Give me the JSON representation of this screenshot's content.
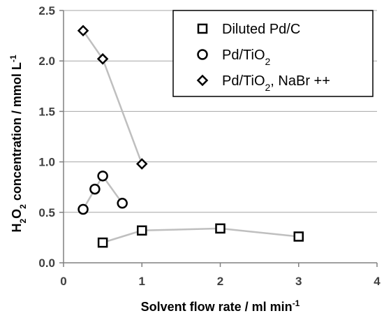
{
  "chart_data": {
    "type": "scatter",
    "title": "",
    "xlabel": {
      "main": "Solvent flow rate / ml min",
      "sup": "-1"
    },
    "ylabel": {
      "parts": [
        {
          "t": "H",
          "s": "normal"
        },
        {
          "t": "2",
          "s": "sub"
        },
        {
          "t": "O",
          "s": "normal"
        },
        {
          "t": "2",
          "s": "sub"
        },
        {
          "t": " concentration / mmol L",
          "s": "normal"
        },
        {
          "t": "-1",
          "s": "sup"
        }
      ]
    },
    "xlim": [
      0,
      4
    ],
    "ylim": [
      0,
      2.5
    ],
    "xticks": [
      "0",
      "1",
      "2",
      "3",
      "4"
    ],
    "yticks": [
      "0.0",
      "0.5",
      "1.0",
      "1.5",
      "2.0",
      "2.5"
    ],
    "grid": "horizontal",
    "legend_position": "top-right",
    "series": [
      {
        "name": "Diluted Pd/C",
        "name_parts": [
          {
            "t": "Diluted Pd/C",
            "s": "normal"
          }
        ],
        "marker": "square",
        "line_color": "#bfbfbf",
        "points": [
          [
            0.5,
            0.2
          ],
          [
            1.0,
            0.32
          ],
          [
            2.0,
            0.34
          ],
          [
            3.0,
            0.26
          ]
        ]
      },
      {
        "name": "Pd/TiO2",
        "name_parts": [
          {
            "t": "Pd/TiO",
            "s": "normal"
          },
          {
            "t": "2",
            "s": "sub"
          }
        ],
        "marker": "circle",
        "line_color": "#bfbfbf",
        "points": [
          [
            0.25,
            0.53
          ],
          [
            0.4,
            0.73
          ],
          [
            0.5,
            0.86
          ],
          [
            0.75,
            0.59
          ]
        ]
      },
      {
        "name": "Pd/TiO2, NaBr ++",
        "name_parts": [
          {
            "t": "Pd/TiO",
            "s": "normal"
          },
          {
            "t": "2",
            "s": "sub"
          },
          {
            "t": ", NaBr ++",
            "s": "normal"
          }
        ],
        "marker": "diamond",
        "line_color": "#bfbfbf",
        "points": [
          [
            0.25,
            2.3
          ],
          [
            0.5,
            2.02
          ],
          [
            1.0,
            0.98
          ]
        ]
      }
    ]
  }
}
